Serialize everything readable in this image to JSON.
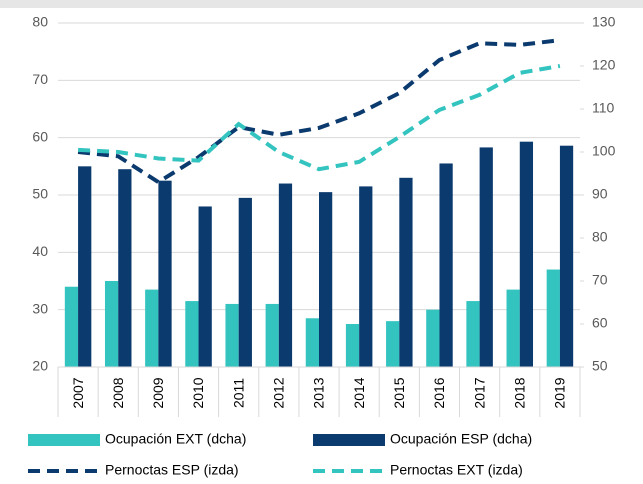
{
  "chart_data": {
    "type": "bar-line",
    "categories": [
      "2007",
      "2008",
      "2009",
      "2010",
      "2011",
      "2012",
      "2013",
      "2014",
      "2015",
      "2016",
      "2017",
      "2018",
      "2019"
    ],
    "series": [
      {
        "name": "Ocupación EXT (dcha)",
        "color": "#33c4c0",
        "kind": "bar",
        "values": [
          34,
          35,
          33.5,
          31.5,
          31,
          31,
          28.5,
          27.5,
          28,
          30,
          31.5,
          33.5,
          37
        ]
      },
      {
        "name": "Ocupación ESP (dcha)",
        "color": "#0b3a6e",
        "kind": "bar",
        "values": [
          55,
          54.5,
          52.5,
          48,
          49.5,
          52,
          50.5,
          51.5,
          53,
          55.5,
          58.3,
          59.3,
          58.6
        ]
      },
      {
        "name": "Pernoctas ESP (izda)",
        "color": "#0b3a6e",
        "kind": "line",
        "axis": "y2",
        "values": [
          100,
          99,
          93,
          98.8,
          105.8,
          104,
          105.6,
          109,
          113.7,
          121.4,
          125.3,
          124.9,
          126
        ]
      },
      {
        "name": "Pernoctas EXT (izda)",
        "color": "#33c4c0",
        "kind": "line",
        "axis": "y2",
        "values": [
          100.5,
          100,
          98.5,
          98,
          106.5,
          100,
          96,
          97.7,
          103.5,
          109.8,
          113.3,
          118.4,
          120
        ]
      }
    ],
    "ylim": [
      20,
      80
    ],
    "yticks": [
      20,
      30,
      40,
      50,
      60,
      70,
      80
    ],
    "y2lim": [
      50,
      130
    ],
    "y2ticks": [
      50,
      60,
      70,
      80,
      90,
      100,
      110,
      120,
      130
    ],
    "grid": true
  }
}
